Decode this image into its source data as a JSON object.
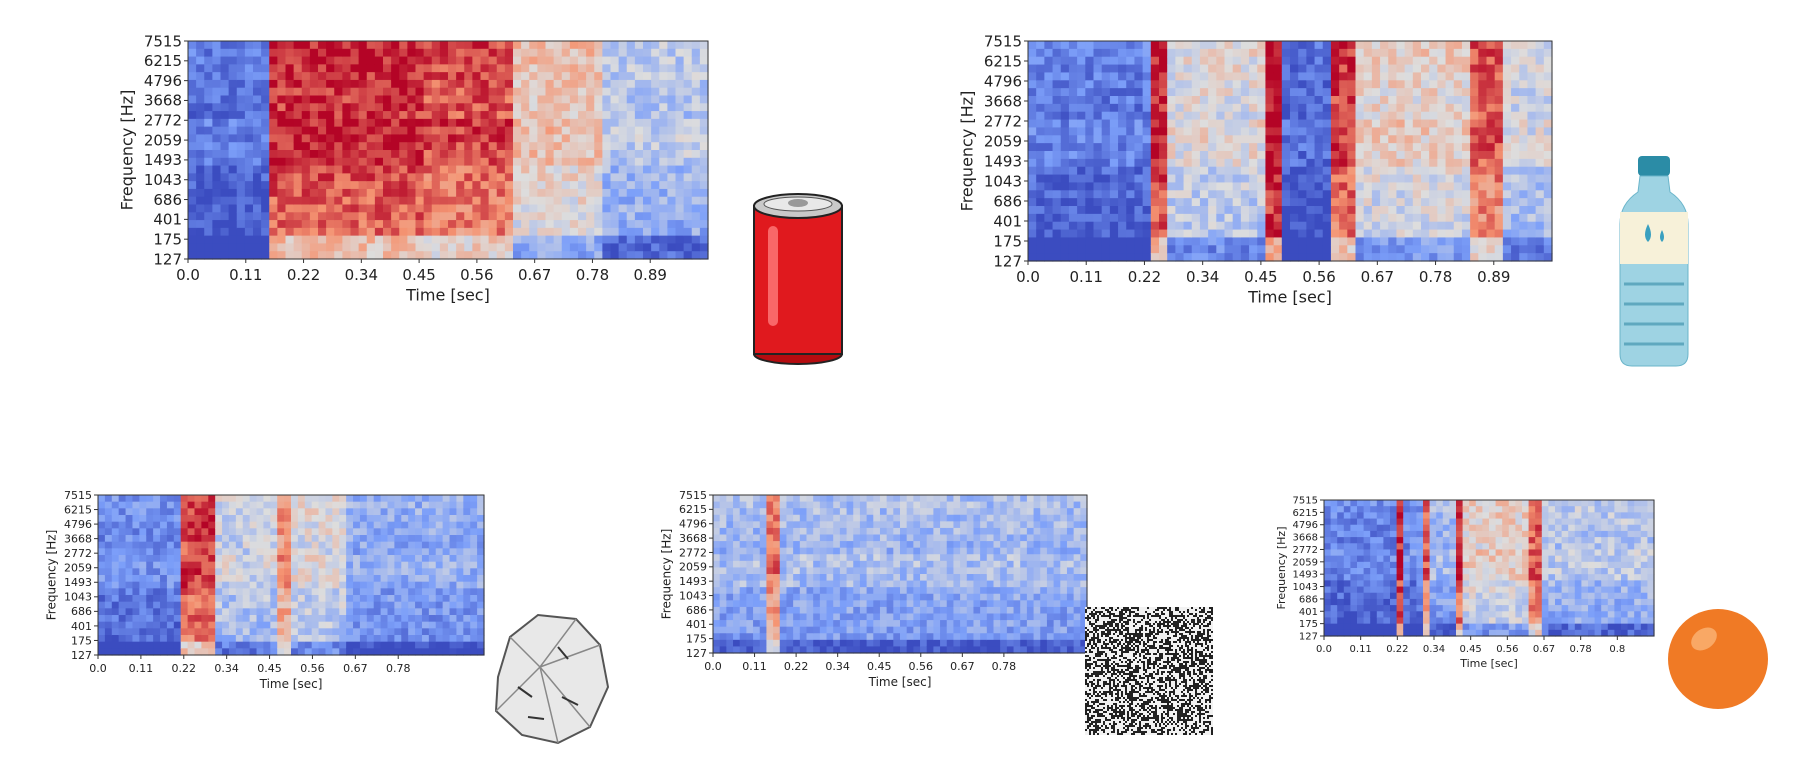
{
  "chart_data": [
    {
      "type": "heatmap",
      "object": "can",
      "xlabel": "Time [sec]",
      "ylabel": "Frequency [Hz]",
      "x_ticks": [
        "0.0",
        "0.11",
        "0.22",
        "0.34",
        "0.45",
        "0.56",
        "0.67",
        "0.78",
        "0.89"
      ],
      "y_ticks": [
        "7515",
        "6215",
        "4796",
        "3668",
        "2772",
        "2059",
        "1493",
        "1043",
        "686",
        "401",
        "175",
        "127"
      ],
      "xlim": [
        0.0,
        1.0
      ],
      "colormap": "coolwarm",
      "events": [
        {
          "start": 0.0,
          "end": 0.15,
          "level": 0.08
        },
        {
          "start": 0.15,
          "end": 0.45,
          "level": 0.88
        },
        {
          "start": 0.45,
          "end": 0.62,
          "level": 0.82
        },
        {
          "start": 0.62,
          "end": 0.8,
          "level": 0.55
        },
        {
          "start": 0.8,
          "end": 1.0,
          "level": 0.35
        }
      ]
    },
    {
      "type": "heatmap",
      "object": "bottle",
      "xlabel": "Time [sec]",
      "ylabel": "Frequency [Hz]",
      "x_ticks": [
        "0.0",
        "0.11",
        "0.22",
        "0.34",
        "0.45",
        "0.56",
        "0.67",
        "0.78",
        "0.89"
      ],
      "y_ticks": [
        "7515",
        "6215",
        "4796",
        "3668",
        "2772",
        "2059",
        "1493",
        "1043",
        "686",
        "401",
        "175",
        "127"
      ],
      "xlim": [
        0.0,
        1.0
      ],
      "colormap": "coolwarm",
      "events": [
        {
          "start": 0.0,
          "end": 0.24,
          "level": 0.1
        },
        {
          "start": 0.24,
          "end": 0.27,
          "level": 0.9
        },
        {
          "start": 0.27,
          "end": 0.45,
          "level": 0.45
        },
        {
          "start": 0.45,
          "end": 0.48,
          "level": 0.95
        },
        {
          "start": 0.48,
          "end": 0.58,
          "level": 0.05
        },
        {
          "start": 0.58,
          "end": 0.62,
          "level": 0.85
        },
        {
          "start": 0.62,
          "end": 0.84,
          "level": 0.5
        },
        {
          "start": 0.84,
          "end": 0.9,
          "level": 0.8
        },
        {
          "start": 0.9,
          "end": 1.0,
          "level": 0.4
        }
      ]
    },
    {
      "type": "heatmap",
      "object": "paper",
      "xlabel": "Time [sec]",
      "ylabel": "Frequency [Hz]",
      "x_ticks": [
        "0.0",
        "0.11",
        "0.22",
        "0.34",
        "0.45",
        "0.56",
        "0.67",
        "0.78"
      ],
      "y_ticks": [
        "7515",
        "6215",
        "4796",
        "3668",
        "2772",
        "2059",
        "1493",
        "1043",
        "686",
        "401",
        "175",
        "127"
      ],
      "xlim": [
        0.0,
        1.0
      ],
      "colormap": "coolwarm",
      "events": [
        {
          "start": 0.0,
          "end": 0.22,
          "level": 0.15
        },
        {
          "start": 0.22,
          "end": 0.3,
          "level": 0.85
        },
        {
          "start": 0.3,
          "end": 0.46,
          "level": 0.4
        },
        {
          "start": 0.46,
          "end": 0.5,
          "level": 0.7
        },
        {
          "start": 0.5,
          "end": 0.64,
          "level": 0.45
        },
        {
          "start": 0.64,
          "end": 1.0,
          "level": 0.25
        }
      ]
    },
    {
      "type": "heatmap",
      "object": "noise",
      "xlabel": "Time [sec]",
      "ylabel": "Frequency [Hz]",
      "x_ticks": [
        "0.0",
        "0.11",
        "0.22",
        "0.34",
        "0.45",
        "0.56",
        "0.67",
        "0.78"
      ],
      "y_ticks": [
        "7515",
        "6215",
        "4796",
        "3668",
        "2772",
        "2059",
        "1493",
        "1043",
        "686",
        "401",
        "175",
        "127"
      ],
      "xlim": [
        0.0,
        1.0
      ],
      "colormap": "coolwarm",
      "events": [
        {
          "start": 0.0,
          "end": 1.0,
          "level": 0.3
        },
        {
          "start": 0.14,
          "end": 0.17,
          "level": 0.75
        }
      ]
    },
    {
      "type": "heatmap",
      "object": "ball",
      "xlabel": "Time [sec]",
      "ylabel": "Frequency [Hz]",
      "x_ticks": [
        "0.0",
        "0.11",
        "0.22",
        "0.34",
        "0.45",
        "0.56",
        "0.67",
        "0.78",
        "0.8"
      ],
      "y_ticks": [
        "7515",
        "6215",
        "4796",
        "3668",
        "2772",
        "2059",
        "1493",
        "1043",
        "686",
        "401",
        "175",
        "127"
      ],
      "xlim": [
        0.0,
        1.0
      ],
      "colormap": "coolwarm",
      "events": [
        {
          "start": 0.0,
          "end": 0.22,
          "level": 0.12
        },
        {
          "start": 0.22,
          "end": 0.25,
          "level": 0.9
        },
        {
          "start": 0.25,
          "end": 0.3,
          "level": 0.15
        },
        {
          "start": 0.3,
          "end": 0.33,
          "level": 0.8
        },
        {
          "start": 0.33,
          "end": 0.4,
          "level": 0.3
        },
        {
          "start": 0.4,
          "end": 0.43,
          "level": 0.85
        },
        {
          "start": 0.43,
          "end": 0.62,
          "level": 0.5
        },
        {
          "start": 0.62,
          "end": 0.66,
          "level": 0.8
        },
        {
          "start": 0.66,
          "end": 1.0,
          "level": 0.35
        }
      ]
    }
  ],
  "icons": [
    "soda-can-icon",
    "water-bottle-icon",
    "crumpled-paper-icon",
    "noise-texture-icon",
    "orange-ball-icon"
  ]
}
